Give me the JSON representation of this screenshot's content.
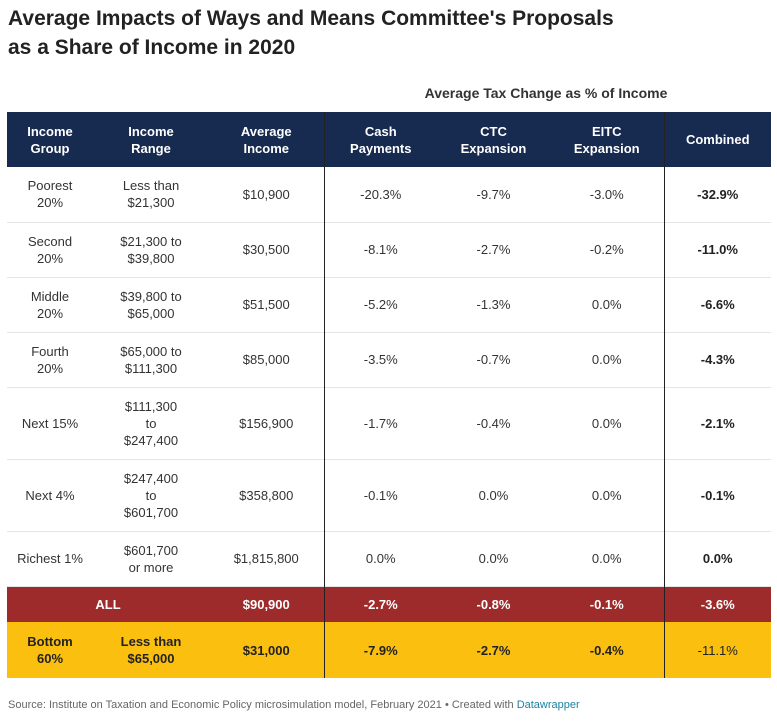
{
  "title_line1": "Average Impacts of Ways and Means Committee's Proposals",
  "title_line2": "as a Share of Income in 2020",
  "chart_data": {
    "type": "table",
    "group_label": "Average Tax Change as % of Income",
    "columns": [
      {
        "line1": "Income",
        "line2": "Group"
      },
      {
        "line1": "Income",
        "line2": "Range"
      },
      {
        "line1": "Average",
        "line2": "Income"
      },
      {
        "line1": "Cash",
        "line2": "Payments"
      },
      {
        "line1": "CTC",
        "line2": "Expansion"
      },
      {
        "line1": "EITC",
        "line2": "Expansion"
      },
      {
        "line1": "Combined",
        "line2": ""
      }
    ],
    "rows": [
      {
        "group": [
          "Poorest",
          "20%"
        ],
        "range": [
          "Less than",
          "$21,300"
        ],
        "avg_income": "$10,900",
        "cash": "-20.3%",
        "ctc": "-9.7%",
        "eitc": "-3.0%",
        "combined": "-32.9%"
      },
      {
        "group": [
          "Second",
          "20%"
        ],
        "range": [
          "$21,300 to",
          "$39,800"
        ],
        "avg_income": "$30,500",
        "cash": "-8.1%",
        "ctc": "-2.7%",
        "eitc": "-0.2%",
        "combined": "-11.0%"
      },
      {
        "group": [
          "Middle",
          "20%"
        ],
        "range": [
          "$39,800 to",
          "$65,000"
        ],
        "avg_income": "$51,500",
        "cash": "-5.2%",
        "ctc": "-1.3%",
        "eitc": "0.0%",
        "combined": "-6.6%"
      },
      {
        "group": [
          "Fourth",
          "20%"
        ],
        "range": [
          "$65,000 to",
          "$111,300"
        ],
        "avg_income": "$85,000",
        "cash": "-3.5%",
        "ctc": "-0.7%",
        "eitc": "0.0%",
        "combined": "-4.3%"
      },
      {
        "group": [
          "Next 15%"
        ],
        "range": [
          "$111,300",
          "to",
          "$247,400"
        ],
        "avg_income": "$156,900",
        "cash": "-1.7%",
        "ctc": "-0.4%",
        "eitc": "0.0%",
        "combined": "-2.1%"
      },
      {
        "group": [
          "Next 4%"
        ],
        "range": [
          "$247,400",
          "to",
          "$601,700"
        ],
        "avg_income": "$358,800",
        "cash": "-0.1%",
        "ctc": "0.0%",
        "eitc": "0.0%",
        "combined": "-0.1%"
      },
      {
        "group": [
          "Richest 1%"
        ],
        "range": [
          "$601,700",
          "or more"
        ],
        "avg_income": "$1,815,800",
        "cash": "0.0%",
        "ctc": "0.0%",
        "eitc": "0.0%",
        "combined": "0.0%"
      }
    ],
    "all_row": {
      "label": "ALL",
      "avg_income": "$90,900",
      "cash": "-2.7%",
      "ctc": "-0.8%",
      "eitc": "-0.1%",
      "combined": "-3.6%"
    },
    "bottom_row": {
      "group": [
        "Bottom",
        "60%"
      ],
      "range": [
        "Less than",
        "$65,000"
      ],
      "avg_income": "$31,000",
      "cash": "-7.9%",
      "ctc": "-2.7%",
      "eitc": "-0.4%",
      "combined": "-11.1%"
    }
  },
  "footer": {
    "text": "Source: Institute on Taxation and Economic Policy microsimulation model, February 2021 • Created with ",
    "link": "Datawrapper"
  },
  "colors": {
    "header_bg": "#172a4f",
    "all_row_bg": "#9e2b2b",
    "bottom_row_bg": "#fbbf10"
  }
}
